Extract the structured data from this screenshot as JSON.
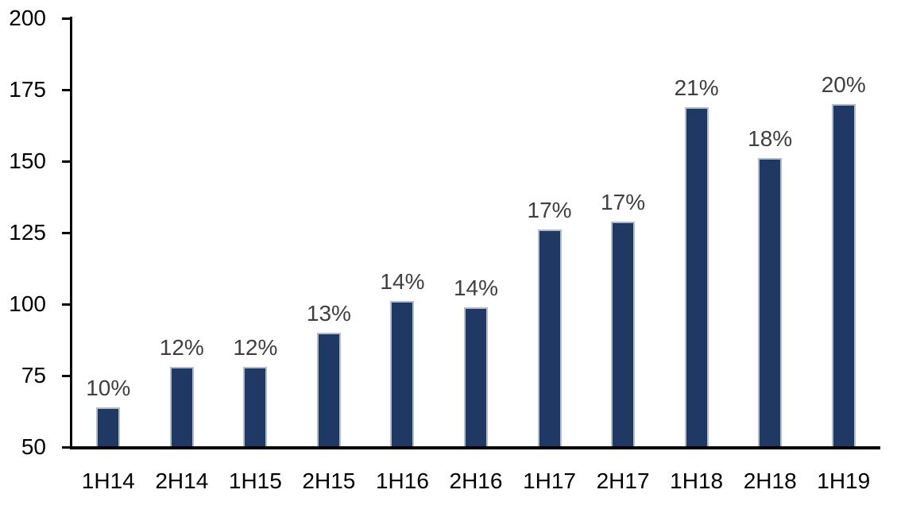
{
  "chart_data": {
    "type": "bar",
    "title": "",
    "xlabel": "",
    "ylabel": "",
    "categories": [
      "1H14",
      "2H14",
      "1H15",
      "2H15",
      "1H16",
      "2H16",
      "1H17",
      "2H17",
      "1H18",
      "2H18",
      "1H19"
    ],
    "values": [
      64,
      78,
      78,
      90,
      101,
      99,
      126,
      129,
      169,
      151,
      170
    ],
    "bar_labels": [
      "10%",
      "12%",
      "12%",
      "13%",
      "14%",
      "14%",
      "17%",
      "17%",
      "21%",
      "18%",
      "20%"
    ],
    "ylim": [
      50,
      200
    ],
    "y_ticks": [
      50,
      75,
      100,
      125,
      150,
      175,
      200
    ],
    "grid": false,
    "legend": false,
    "colors": {
      "bar_fill": "#1F3864",
      "bar_border": "#B3BCCB",
      "data_label": "#3F3F3F",
      "axis_text": "#000000",
      "axis_line": "#000000",
      "background": "#FFFFFF"
    }
  }
}
